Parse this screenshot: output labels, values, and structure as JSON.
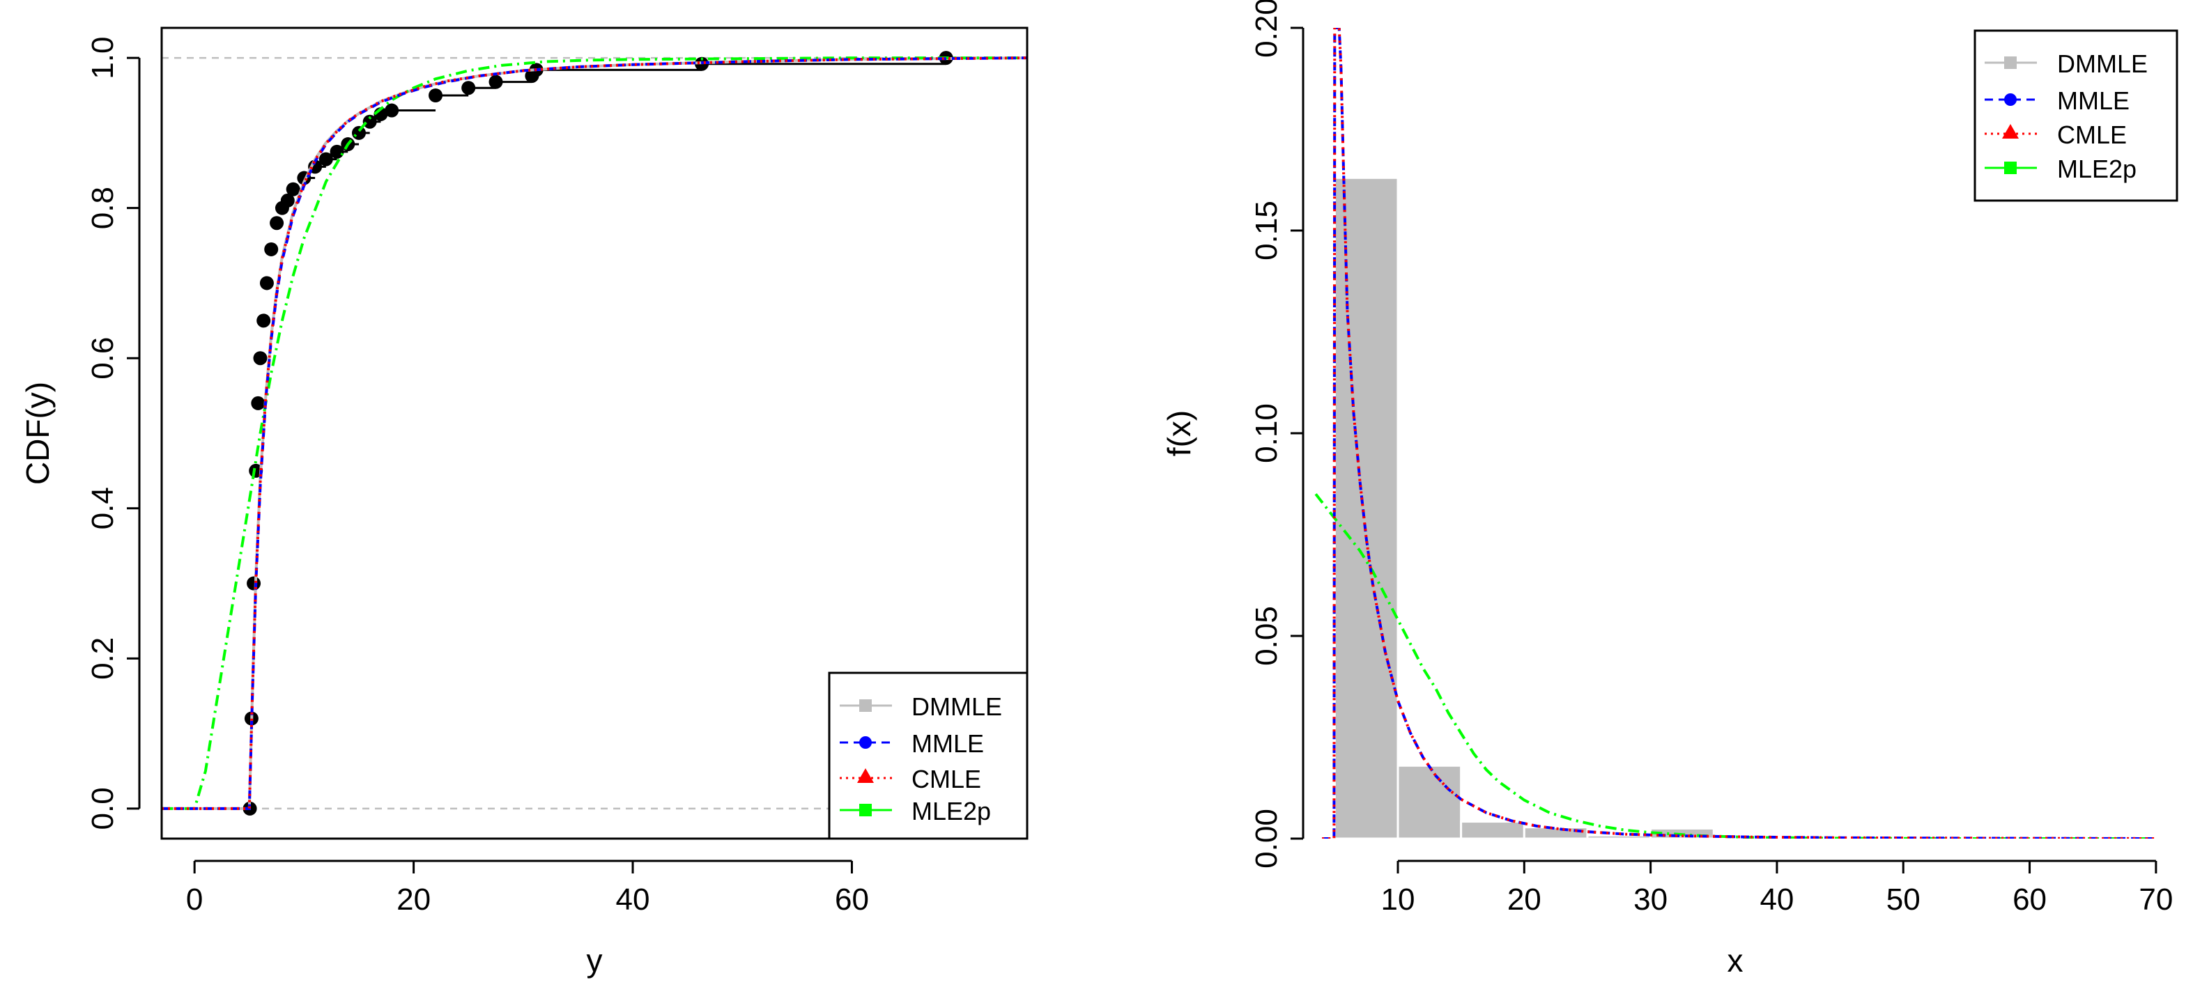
{
  "colors": {
    "DMMLE": "#bebebe",
    "MMLE": "#0000ff",
    "CMLE": "#ff0000",
    "MLE2p": "#00ff00",
    "ecdf": "#000000",
    "refline": "#bebebe",
    "hist_fill": "#bebebe"
  },
  "chart_data": [
    {
      "type": "line",
      "panel": "ecdf",
      "xlabel": "y",
      "ylabel": "CDF(y)",
      "xlim": [
        -3,
        76
      ],
      "ylim": [
        -0.04,
        1.04
      ],
      "xticks": [
        0,
        20,
        40,
        60
      ],
      "xtick_labels": [
        "0",
        "20",
        "40",
        "60"
      ],
      "yticks": [
        0.0,
        0.2,
        0.4,
        0.6,
        0.8,
        1.0
      ],
      "ytick_labels": [
        "0.0",
        "0.2",
        "0.4",
        "0.6",
        "0.8",
        "1.0"
      ],
      "reference_lines": [
        0,
        1
      ],
      "legend": {
        "position": "bottom-right",
        "entries": [
          {
            "label": "DMMLE",
            "series": "DMMLE",
            "line": "solid",
            "marker": "square"
          },
          {
            "label": "MMLE",
            "series": "MMLE",
            "line": "dashed",
            "marker": "circle"
          },
          {
            "label": "CMLE",
            "series": "CMLE",
            "line": "dotted",
            "marker": "triangle"
          },
          {
            "label": "MLE2p",
            "series": "MLE2p",
            "line": "dashdot",
            "marker": "square"
          }
        ]
      },
      "series": [
        {
          "name": "DMMLE",
          "style": "solid",
          "x": [
            -3,
            4.9,
            5,
            5.3,
            5.6,
            6,
            6.5,
            7,
            7.5,
            8,
            9,
            10,
            11,
            12,
            13,
            14,
            15,
            17,
            19,
            21,
            23,
            26,
            30,
            35,
            40,
            50,
            60,
            76
          ],
          "y": [
            0,
            0,
            0,
            0.165,
            0.31,
            0.44,
            0.55,
            0.63,
            0.69,
            0.735,
            0.795,
            0.835,
            0.865,
            0.887,
            0.903,
            0.916,
            0.926,
            0.942,
            0.953,
            0.962,
            0.969,
            0.976,
            0.983,
            0.988,
            0.991,
            0.995,
            0.998,
            1.0
          ]
        },
        {
          "name": "MMLE",
          "style": "dashed",
          "x": [
            -3,
            4.9,
            5,
            5.3,
            5.6,
            6,
            6.5,
            7,
            7.5,
            8,
            9,
            10,
            11,
            12,
            13,
            14,
            15,
            17,
            19,
            21,
            23,
            26,
            30,
            35,
            40,
            50,
            60,
            76
          ],
          "y": [
            0,
            0,
            0,
            0.16,
            0.3,
            0.43,
            0.545,
            0.625,
            0.685,
            0.73,
            0.79,
            0.83,
            0.862,
            0.885,
            0.901,
            0.915,
            0.925,
            0.941,
            0.952,
            0.961,
            0.968,
            0.976,
            0.983,
            0.988,
            0.991,
            0.995,
            0.998,
            1.0
          ]
        },
        {
          "name": "CMLE",
          "style": "dotted",
          "x": [
            -3,
            4.9,
            5,
            5.3,
            5.6,
            6,
            6.5,
            7,
            7.5,
            8,
            9,
            10,
            11,
            12,
            13,
            14,
            15,
            17,
            19,
            21,
            23,
            26,
            30,
            35,
            40,
            50,
            60,
            76
          ],
          "y": [
            0,
            0,
            0,
            0.163,
            0.305,
            0.435,
            0.548,
            0.628,
            0.688,
            0.733,
            0.793,
            0.833,
            0.864,
            0.886,
            0.902,
            0.916,
            0.926,
            0.942,
            0.953,
            0.962,
            0.969,
            0.976,
            0.983,
            0.988,
            0.991,
            0.995,
            0.998,
            1.0
          ]
        },
        {
          "name": "MLE2p",
          "style": "dashdot",
          "x": [
            -3,
            0,
            1,
            2,
            3,
            4,
            5,
            6,
            7,
            8,
            9,
            10,
            12,
            14,
            16,
            18,
            20,
            22,
            25,
            28,
            32,
            36,
            40,
            50,
            60,
            76
          ],
          "y": [
            0,
            0,
            0.05,
            0.14,
            0.23,
            0.32,
            0.41,
            0.5,
            0.58,
            0.65,
            0.71,
            0.76,
            0.835,
            0.885,
            0.92,
            0.944,
            0.96,
            0.972,
            0.983,
            0.99,
            0.995,
            0.997,
            0.998,
            0.999,
            1.0,
            1.0
          ]
        },
        {
          "name": "ECDF",
          "style": "step",
          "x": [
            5.05,
            5.2,
            5.4,
            5.6,
            5.8,
            6,
            6.3,
            6.6,
            7,
            7.5,
            8,
            8.5,
            9,
            10,
            11,
            12,
            13,
            14,
            15,
            16,
            17,
            18,
            22,
            25,
            27.5,
            30.8,
            31.2,
            46.3,
            68.6
          ],
          "y": [
            0,
            0.12,
            0.3,
            0.45,
            0.54,
            0.6,
            0.65,
            0.7,
            0.745,
            0.78,
            0.8,
            0.81,
            0.825,
            0.84,
            0.855,
            0.865,
            0.875,
            0.885,
            0.9,
            0.915,
            0.925,
            0.93,
            0.95,
            0.96,
            0.968,
            0.976,
            0.984,
            0.992,
            1.0
          ]
        }
      ]
    },
    {
      "type": "bar",
      "panel": "density",
      "xlabel": "x",
      "ylabel": "f(x)",
      "xlim": [
        2.5,
        71
      ],
      "ylim": [
        0,
        0.2
      ],
      "xticks": [
        10,
        20,
        30,
        40,
        50,
        60,
        70
      ],
      "xtick_labels": [
        "10",
        "20",
        "30",
        "40",
        "50",
        "60",
        "70"
      ],
      "yticks": [
        0.0,
        0.05,
        0.1,
        0.15,
        0.2
      ],
      "ytick_labels": [
        "0.00",
        "0.05",
        "0.10",
        "0.15",
        "0.20"
      ],
      "histogram": {
        "breaks": [
          5,
          10,
          15,
          20,
          25,
          30,
          35,
          40,
          45,
          50,
          55,
          60,
          65,
          70
        ],
        "density": [
          0.163,
          0.018,
          0.0042,
          0.0028,
          0.0008,
          0.0025,
          0.0002,
          0.0001,
          0.0001,
          0.0001,
          0.0001,
          0.0001,
          0.0001
        ]
      },
      "legend": {
        "position": "top-right",
        "entries": [
          {
            "label": "DMMLE",
            "series": "DMMLE",
            "line": "solid",
            "marker": "square"
          },
          {
            "label": "MMLE",
            "series": "MMLE",
            "line": "dashed",
            "marker": "circle"
          },
          {
            "label": "CMLE",
            "series": "CMLE",
            "line": "dotted",
            "marker": "triangle"
          },
          {
            "label": "MLE2p",
            "series": "MLE2p",
            "line": "dashdot",
            "marker": "square"
          }
        ]
      },
      "series": [
        {
          "name": "MMLE",
          "style": "dashed",
          "x": [
            4,
            4.95,
            5,
            5.05,
            5.1,
            5.2,
            5.35,
            5.5,
            5.7,
            6,
            6.5,
            7,
            7.5,
            8,
            9,
            10,
            11,
            12,
            13,
            14,
            15,
            17,
            19,
            21,
            23,
            25,
            28,
            32,
            38,
            45,
            55,
            70
          ],
          "y": [
            0,
            0,
            0.2,
            0.2,
            0.2,
            0.2,
            0.2,
            0.19,
            0.165,
            0.13,
            0.105,
            0.088,
            0.074,
            0.063,
            0.046,
            0.034,
            0.026,
            0.02,
            0.0155,
            0.0122,
            0.0097,
            0.0064,
            0.0044,
            0.0031,
            0.0023,
            0.0017,
            0.0011,
            0.0007,
            0.0004,
            0.0002,
            0.0001,
            0
          ]
        },
        {
          "name": "CMLE",
          "style": "dotted",
          "x": [
            4,
            4.95,
            5,
            5.05,
            5.1,
            5.2,
            5.35,
            5.5,
            5.7,
            6,
            6.5,
            7,
            7.5,
            8,
            9,
            10,
            11,
            12,
            13,
            14,
            15,
            17,
            19,
            21,
            23,
            25,
            28,
            32,
            38,
            45,
            55,
            70
          ],
          "y": [
            0,
            0,
            0.2,
            0.2,
            0.2,
            0.2,
            0.2,
            0.19,
            0.165,
            0.13,
            0.105,
            0.088,
            0.074,
            0.063,
            0.046,
            0.034,
            0.026,
            0.02,
            0.0155,
            0.0122,
            0.0097,
            0.0064,
            0.0044,
            0.0031,
            0.0023,
            0.0017,
            0.0011,
            0.0007,
            0.0004,
            0.0002,
            0.0001,
            0
          ]
        },
        {
          "name": "MLE2p",
          "style": "dashdot",
          "x": [
            3.5,
            5,
            6,
            7,
            8,
            9,
            10,
            11,
            12,
            13,
            14,
            15,
            16,
            17,
            18,
            20,
            22,
            24,
            26,
            28,
            30,
            34,
            38,
            45,
            55,
            70
          ],
          "y": [
            0.085,
            0.079,
            0.075,
            0.071,
            0.066,
            0.06,
            0.054,
            0.048,
            0.042,
            0.037,
            0.031,
            0.026,
            0.021,
            0.017,
            0.014,
            0.0095,
            0.0064,
            0.0045,
            0.0031,
            0.0021,
            0.0015,
            0.0007,
            0.0003,
            0.0001,
            0,
            0
          ]
        }
      ]
    }
  ]
}
